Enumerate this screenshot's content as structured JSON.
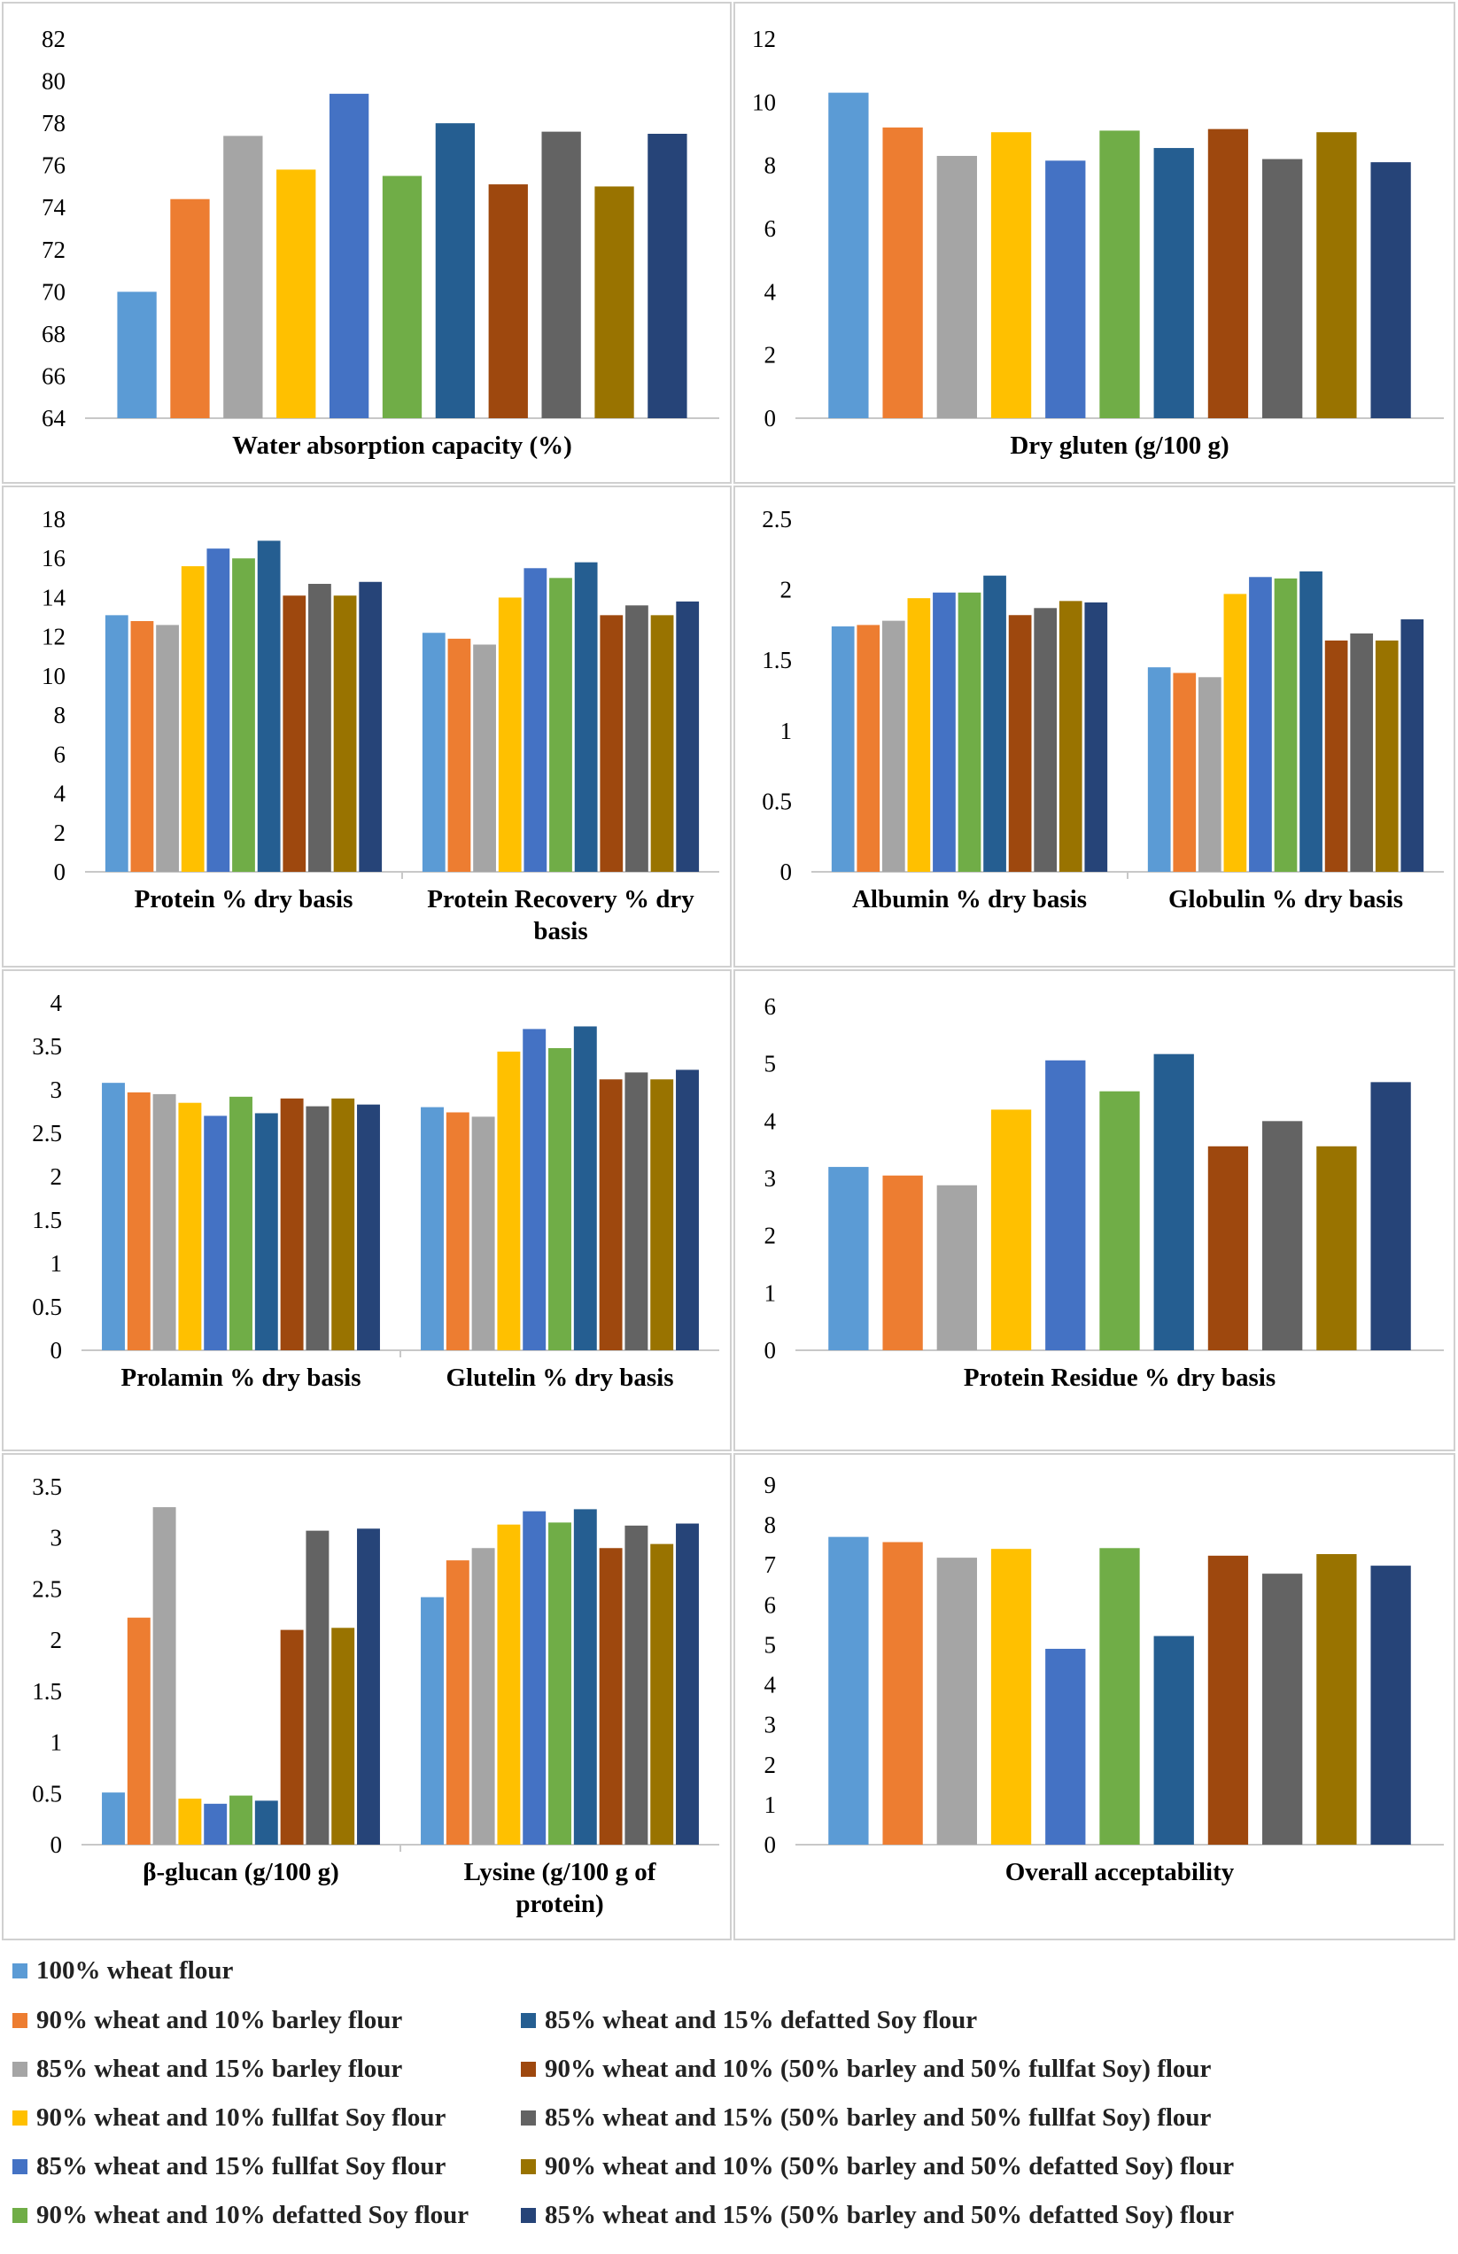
{
  "colors": [
    "#5b9bd5",
    "#ed7d31",
    "#a5a5a5",
    "#ffc000",
    "#4472c4",
    "#70ad47",
    "#255e91",
    "#9e480e",
    "#636363",
    "#997300",
    "#264478"
  ],
  "legend": [
    "100% wheat flour",
    "90% wheat and 10% barley flour",
    "85% wheat and 15% barley flour",
    "90% wheat and 10% fullfat Soy flour",
    "85% wheat and 15% fullfat Soy flour",
    "90% wheat and 10% defatted Soy flour",
    "85% wheat and 15% defatted Soy flour",
    "90% wheat and 10% (50% barley and 50% fullfat Soy) flour",
    "85% wheat and 15% (50% barley and 50% fullfat Soy) flour",
    "90% wheat and 10% (50% barley and 50% defatted Soy) flour",
    "85% wheat and 15% (50% barley and 50% defatted Soy) flour"
  ],
  "chart_data": [
    {
      "type": "bar",
      "ylim": [
        64,
        82
      ],
      "yticks": [
        "64",
        "66",
        "68",
        "70",
        "72",
        "74",
        "76",
        "78",
        "80",
        "82"
      ],
      "categories": [
        "Water absorption capacity (%)"
      ],
      "values": [
        [
          70.0,
          74.4,
          77.4,
          75.8,
          79.4,
          75.5,
          78.0,
          75.1,
          77.6,
          75.0,
          77.5
        ]
      ]
    },
    {
      "type": "bar",
      "ylim": [
        0,
        12
      ],
      "yticks": [
        "0",
        "2",
        "4",
        "6",
        "8",
        "10",
        "12"
      ],
      "categories": [
        "Dry gluten (g/100 g)"
      ],
      "values": [
        [
          10.3,
          9.2,
          8.3,
          9.05,
          8.15,
          9.1,
          8.55,
          9.15,
          8.2,
          9.05,
          8.1
        ]
      ]
    },
    {
      "type": "bar",
      "ylim": [
        0,
        18
      ],
      "yticks": [
        "0",
        "2",
        "4",
        "6",
        "8",
        "10",
        "12",
        "14",
        "16",
        "18"
      ],
      "categories": [
        [
          "Protein % dry basis"
        ],
        [
          "Protein Recovery % dry",
          "basis"
        ]
      ],
      "values": [
        [
          13.1,
          12.8,
          12.6,
          15.6,
          16.5,
          16.0,
          16.9,
          14.1,
          14.7,
          14.1,
          14.8
        ],
        [
          12.2,
          11.9,
          11.6,
          14.0,
          15.5,
          15.0,
          15.8,
          13.1,
          13.6,
          13.1,
          13.8
        ]
      ]
    },
    {
      "type": "bar",
      "ylim": [
        0,
        2.5
      ],
      "yticks": [
        "0",
        "0.5",
        "1",
        "1.5",
        "2",
        "2.5"
      ],
      "categories": [
        [
          "Albumin % dry basis"
        ],
        [
          "Globulin % dry basis"
        ]
      ],
      "values": [
        [
          1.74,
          1.75,
          1.78,
          1.94,
          1.98,
          1.98,
          2.1,
          1.82,
          1.87,
          1.92,
          1.91
        ],
        [
          1.45,
          1.41,
          1.38,
          1.97,
          2.09,
          2.08,
          2.13,
          1.64,
          1.69,
          1.64,
          1.79
        ]
      ]
    },
    {
      "type": "bar",
      "ylim": [
        0,
        4
      ],
      "yticks": [
        "0",
        "0.5",
        "1",
        "1.5",
        "2",
        "2.5",
        "3",
        "3.5",
        "4"
      ],
      "categories": [
        [
          "Prolamin % dry basis"
        ],
        [
          "Glutelin % dry basis"
        ]
      ],
      "values": [
        [
          3.08,
          2.97,
          2.95,
          2.85,
          2.7,
          2.92,
          2.73,
          2.9,
          2.81,
          2.9,
          2.83
        ],
        [
          2.8,
          2.74,
          2.69,
          3.44,
          3.7,
          3.48,
          3.73,
          3.12,
          3.2,
          3.12,
          3.23
        ]
      ]
    },
    {
      "type": "bar",
      "ylim": [
        0,
        6
      ],
      "yticks": [
        "0",
        "1",
        "2",
        "3",
        "4",
        "5",
        "6"
      ],
      "categories": [
        [
          "Protein Residue % dry basis"
        ]
      ],
      "values": [
        [
          3.2,
          3.05,
          2.88,
          4.2,
          5.06,
          4.52,
          5.17,
          3.56,
          4.0,
          3.56,
          4.68
        ]
      ]
    },
    {
      "type": "bar",
      "ylim": [
        0,
        3.5
      ],
      "yticks": [
        "0",
        "0.5",
        "1",
        "1.5",
        "2",
        "2.5",
        "3",
        "3.5"
      ],
      "categories": [
        [
          "β-glucan (g/100 g)"
        ],
        [
          "Lysine (g/100 g of",
          "protein)"
        ]
      ],
      "values": [
        [
          0.51,
          2.22,
          3.3,
          0.45,
          0.4,
          0.48,
          0.43,
          2.1,
          3.07,
          2.12,
          3.09
        ],
        [
          2.42,
          2.78,
          2.9,
          3.13,
          3.26,
          3.15,
          3.28,
          2.9,
          3.12,
          2.94,
          3.14
        ]
      ]
    },
    {
      "type": "bar",
      "ylim": [
        0,
        9
      ],
      "yticks": [
        "0",
        "1",
        "2",
        "3",
        "4",
        "5",
        "6",
        "7",
        "8",
        "9"
      ],
      "categories": [
        [
          "Overall acceptability"
        ]
      ],
      "values": [
        [
          7.7,
          7.57,
          7.18,
          7.4,
          4.9,
          7.42,
          5.22,
          7.23,
          6.78,
          7.27,
          6.98
        ]
      ]
    }
  ]
}
